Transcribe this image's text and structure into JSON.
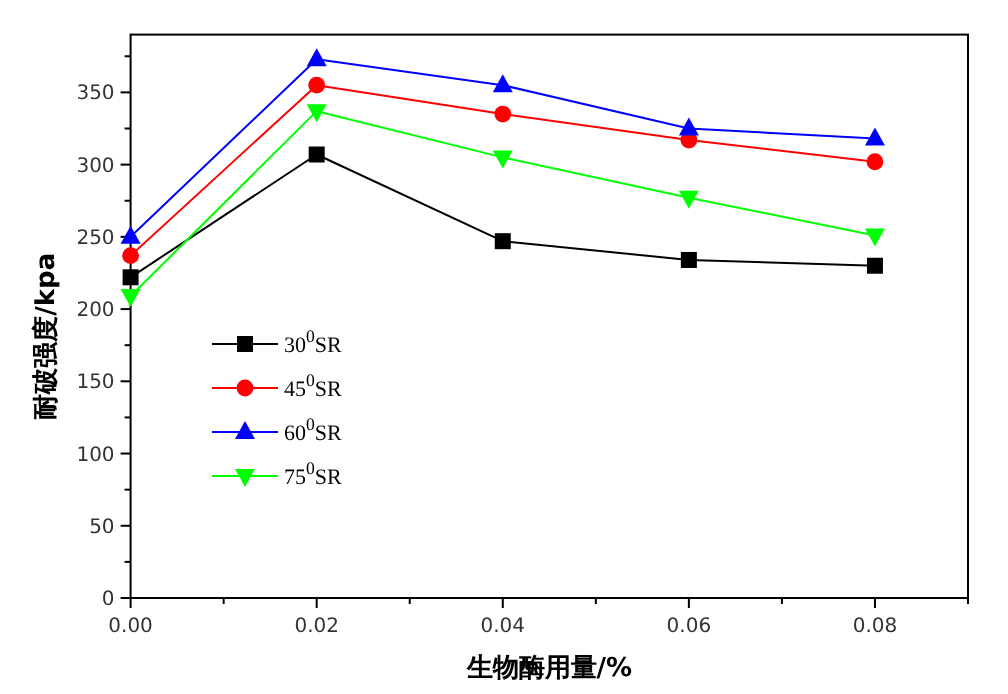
{
  "chart_data": {
    "type": "line",
    "xlabel": "生物酶用量/%",
    "ylabel": "耐破强度/kpa",
    "x": [
      0,
      0.02,
      0.04,
      0.06,
      0.08
    ],
    "series": [
      {
        "name": "30$^{0}$SR",
        "color": "#000000",
        "marker": "square",
        "values": [
          222,
          307,
          247,
          234,
          230
        ]
      },
      {
        "name": "45$^{0}$SR",
        "color": "#ff0000",
        "marker": "circle",
        "values": [
          237,
          355,
          335,
          317,
          302
        ]
      },
      {
        "name": "60$^{0}$SR",
        "color": "#0000ff",
        "marker": "triangle",
        "values": [
          250,
          373,
          355,
          325,
          318
        ]
      },
      {
        "name": "75$^{0}$SR",
        "color": "#00ff00",
        "marker": "triangle-down",
        "values": [
          209,
          337,
          305,
          277,
          251
        ]
      }
    ],
    "xlim": [
      0,
      0.09
    ],
    "xticks": [
      {
        "value": 0,
        "label": "0.00"
      },
      {
        "value": 0.01,
        "label": null
      },
      {
        "value": 0.02,
        "label": "0.02"
      },
      {
        "value": 0.03,
        "label": null
      },
      {
        "value": 0.04,
        "label": "0.04"
      },
      {
        "value": 0.05,
        "label": null
      },
      {
        "value": 0.06,
        "label": "0.06"
      },
      {
        "value": 0.07,
        "label": null
      },
      {
        "value": 0.08,
        "label": "0.08"
      },
      {
        "value": 0.09,
        "label": null
      }
    ],
    "ylim": [
      0,
      390
    ],
    "yticks": [
      0,
      {
        "value": 25,
        "label": null
      },
      50,
      {
        "value": 75,
        "label": null
      },
      100,
      {
        "value": 125,
        "label": null
      },
      150,
      {
        "value": 175,
        "label": null
      },
      200,
      {
        "value": 225,
        "label": null
      },
      250,
      {
        "value": 275,
        "label": null
      },
      300,
      {
        "value": 325,
        "label": null
      },
      350,
      {
        "value": 375,
        "label": null
      }
    ],
    "legend": "center left",
    "grid": false,
    "line_style": "solid"
  }
}
